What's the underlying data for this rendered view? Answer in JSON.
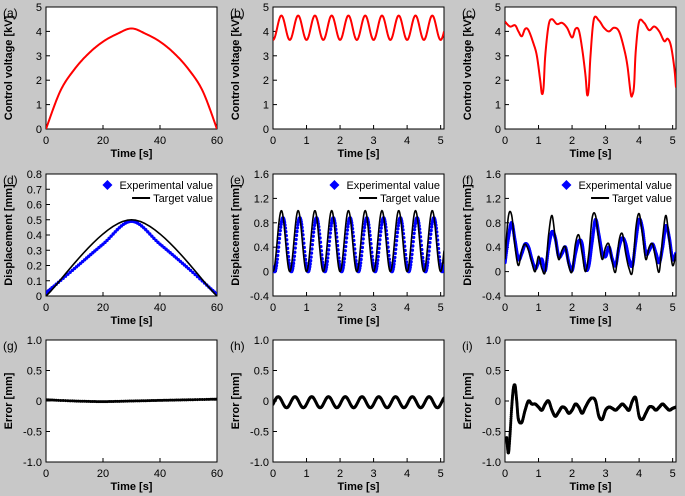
{
  "chart_data": [
    {
      "id": "a",
      "type": "line",
      "panel_label": "(a)",
      "xlabel": "Time [s]",
      "ylabel": "Control voltage [kV]",
      "xlim": [
        0,
        60
      ],
      "ylim": [
        0,
        5
      ],
      "xticks": [
        "0",
        "20",
        "40",
        "60"
      ],
      "yticks": [
        "0",
        "1",
        "2",
        "3",
        "4",
        "5"
      ],
      "series": [
        {
          "style": "red-line",
          "color": "#ff0000",
          "x": [
            0,
            5,
            10,
            15,
            20,
            25,
            30,
            35,
            40,
            45,
            50,
            55,
            60
          ],
          "y": [
            0,
            1.55,
            2.45,
            3.1,
            3.58,
            3.9,
            4.12,
            3.9,
            3.58,
            3.1,
            2.45,
            1.55,
            0
          ]
        }
      ]
    },
    {
      "id": "b",
      "type": "line",
      "panel_label": "(b)",
      "xlabel": "Time [s]",
      "ylabel": "Control voltage [kV]",
      "xlim": [
        0,
        5.1
      ],
      "ylim": [
        0,
        5
      ],
      "xticks": [
        "0",
        "1",
        "2",
        "3",
        "4",
        "5"
      ],
      "yticks": [
        "0",
        "1",
        "2",
        "3",
        "4",
        "5"
      ],
      "series": [
        {
          "style": "red-line",
          "color": "#ff0000",
          "wave": {
            "t_min": 0,
            "t_max": 5.1,
            "base": 4.15,
            "amp": 0.5,
            "freq": 2.0,
            "phase": 0.0
          }
        }
      ]
    },
    {
      "id": "c",
      "type": "line",
      "panel_label": "(c)",
      "xlabel": "Time [s]",
      "ylabel": "Control voltage [kV]",
      "xlim": [
        0,
        5.1
      ],
      "ylim": [
        0,
        5
      ],
      "xticks": [
        "0",
        "1",
        "2",
        "3",
        "4",
        "5"
      ],
      "yticks": [
        "0",
        "1",
        "2",
        "3",
        "4",
        "5"
      ],
      "series": [
        {
          "style": "red-line",
          "color": "#ff0000",
          "x": [
            0,
            0.15,
            0.3,
            0.4,
            0.5,
            0.6,
            0.7,
            0.85,
            0.95,
            1.05,
            1.1,
            1.15,
            1.2,
            1.3,
            1.4,
            1.55,
            1.7,
            1.85,
            2.0,
            2.1,
            2.2,
            2.3,
            2.4,
            2.45,
            2.5,
            2.55,
            2.65,
            2.8,
            2.95,
            3.1,
            3.25,
            3.4,
            3.55,
            3.65,
            3.75,
            3.8,
            3.85,
            3.9,
            4.0,
            4.15,
            4.3,
            4.45,
            4.6,
            4.75,
            4.85,
            4.95,
            5.05,
            5.1
          ],
          "y": [
            4.4,
            4.2,
            4.25,
            4.0,
            3.8,
            4.1,
            4.05,
            3.5,
            3.0,
            2.0,
            1.45,
            1.7,
            3.0,
            4.25,
            4.5,
            4.3,
            4.35,
            4.15,
            3.75,
            4.1,
            4.05,
            3.3,
            2.2,
            1.4,
            1.7,
            3.0,
            4.5,
            4.45,
            4.15,
            4.0,
            4.15,
            4.0,
            3.3,
            2.6,
            1.45,
            1.4,
            1.8,
            3.2,
            4.4,
            4.35,
            4.05,
            4.2,
            4.0,
            3.6,
            3.7,
            3.4,
            2.5,
            1.7
          ]
        }
      ]
    },
    {
      "id": "d",
      "type": "scatter",
      "panel_label": "(d)",
      "xlabel": "Time [s]",
      "ylabel": "Displacement [mm]",
      "xlim": [
        0,
        60
      ],
      "ylim": [
        0,
        0.8
      ],
      "xticks": [
        "0",
        "20",
        "40",
        "60"
      ],
      "yticks": [
        "0",
        "0.1",
        "0.2",
        "0.3",
        "0.4",
        "0.5",
        "0.6",
        "0.7",
        "0.8"
      ],
      "legend": [
        "Experimental value",
        "Target value"
      ],
      "legend_position": "top-right",
      "series": [
        {
          "name": "Experimental value",
          "style": "blue-dots",
          "color": "#0000ff",
          "x": [
            0,
            10,
            20,
            30,
            40,
            50,
            60
          ],
          "y": [
            0.02,
            0.18,
            0.34,
            0.49,
            0.34,
            0.18,
            0.01
          ]
        },
        {
          "name": "Target value",
          "style": "black-line",
          "color": "#000000",
          "x": [
            0,
            30,
            60
          ],
          "y": [
            0,
            0.5,
            0
          ]
        }
      ]
    },
    {
      "id": "e",
      "type": "scatter",
      "panel_label": "(e)",
      "xlabel": "Time [s]",
      "ylabel": "Displacement [mm]",
      "xlim": [
        0,
        5.1
      ],
      "ylim": [
        -0.4,
        1.6
      ],
      "xticks": [
        "0",
        "1",
        "2",
        "3",
        "4",
        "5"
      ],
      "yticks": [
        "-0.4",
        "0",
        "0.4",
        "0.8",
        "1.2",
        "1.6"
      ],
      "legend": [
        "Experimental value",
        "Target value"
      ],
      "legend_position": "top-right",
      "series": [
        {
          "name": "Experimental value",
          "style": "blue-dots",
          "color": "#0000ff",
          "wave": {
            "t_min": 0,
            "t_max": 5.1,
            "base": 0.44,
            "amp": 0.44,
            "freq": 2.0,
            "phase": -0.6
          }
        },
        {
          "name": "Target value",
          "style": "black-line",
          "color": "#000000",
          "wave": {
            "t_min": 0,
            "t_max": 5.1,
            "base": 0.5,
            "amp": 0.5,
            "freq": 2.0,
            "phase": 0.0
          }
        }
      ]
    },
    {
      "id": "f",
      "type": "scatter",
      "panel_label": "(f)",
      "xlabel": "Time [s]",
      "ylabel": "Displacement [mm]",
      "xlim": [
        0,
        5.1
      ],
      "ylim": [
        -0.4,
        1.6
      ],
      "xticks": [
        "0",
        "1",
        "2",
        "3",
        "4",
        "5"
      ],
      "yticks": [
        "-0.4",
        "0",
        "0.4",
        "0.8",
        "1.2",
        "1.6"
      ],
      "legend": [
        "Experimental value",
        "Target value"
      ],
      "legend_position": "top-right",
      "series": [
        {
          "name": "Experimental value",
          "style": "blue-dots",
          "color": "#0000ff",
          "x": [
            0,
            0.1,
            0.2,
            0.3,
            0.4,
            0.5,
            0.6,
            0.7,
            0.8,
            0.9,
            1.0,
            1.1,
            1.2,
            1.3,
            1.4,
            1.5,
            1.6,
            1.7,
            1.8,
            1.9,
            2.0,
            2.1,
            2.2,
            2.3,
            2.4,
            2.5,
            2.6,
            2.7,
            2.8,
            2.9,
            3.0,
            3.1,
            3.2,
            3.3,
            3.4,
            3.5,
            3.6,
            3.7,
            3.8,
            3.9,
            4.0,
            4.1,
            4.2,
            4.3,
            4.4,
            4.5,
            4.6,
            4.7,
            4.8,
            4.9,
            5.0,
            5.1
          ],
          "y": [
            0.15,
            0.55,
            0.8,
            0.5,
            0.2,
            0.3,
            0.45,
            0.4,
            0.2,
            0.05,
            0.15,
            0.2,
            0.02,
            0.4,
            0.65,
            0.55,
            0.25,
            0.3,
            0.4,
            0.15,
            0.02,
            0.3,
            0.5,
            0.45,
            0.05,
            0.1,
            0.5,
            0.85,
            0.6,
            0.3,
            0.25,
            0.4,
            0.2,
            0.1,
            0.4,
            0.55,
            0.45,
            0.2,
            0.1,
            0.5,
            0.85,
            0.7,
            0.3,
            0.35,
            0.45,
            0.3,
            0.15,
            0.4,
            0.75,
            0.55,
            0.2,
            0.3
          ]
        },
        {
          "name": "Target value",
          "style": "black-line",
          "color": "#000000",
          "x": [
            0,
            0.1,
            0.2,
            0.3,
            0.4,
            0.5,
            0.6,
            0.7,
            0.8,
            0.9,
            1.0,
            1.1,
            1.2,
            1.3,
            1.4,
            1.5,
            1.6,
            1.7,
            1.8,
            1.9,
            2.0,
            2.1,
            2.2,
            2.3,
            2.4,
            2.5,
            2.6,
            2.7,
            2.8,
            2.9,
            3.0,
            3.1,
            3.2,
            3.3,
            3.4,
            3.5,
            3.6,
            3.7,
            3.8,
            3.9,
            4.0,
            4.1,
            4.2,
            4.3,
            4.4,
            4.5,
            4.6,
            4.7,
            4.8,
            4.9,
            5.0,
            5.1
          ],
          "y": [
            0.2,
            0.9,
            0.92,
            0.4,
            0.1,
            0.35,
            0.45,
            0.35,
            0.15,
            0.0,
            0.25,
            0.05,
            0.0,
            0.6,
            0.92,
            0.55,
            0.2,
            0.35,
            0.4,
            0.1,
            0.0,
            0.45,
            0.6,
            0.3,
            0.0,
            0.3,
            0.88,
            0.92,
            0.5,
            0.2,
            0.4,
            0.45,
            0.15,
            0.0,
            0.5,
            0.62,
            0.3,
            0.05,
            0.0,
            0.7,
            0.95,
            0.6,
            0.2,
            0.4,
            0.45,
            0.2,
            0.0,
            0.55,
            0.92,
            0.5,
            0.1,
            0.3
          ]
        }
      ]
    },
    {
      "id": "g",
      "type": "scatter",
      "panel_label": "(g)",
      "xlabel": "Time [s]",
      "ylabel": "Error [mm]",
      "xlim": [
        0,
        60
      ],
      "ylim": [
        -1.0,
        1.0
      ],
      "xticks": [
        "0",
        "20",
        "40",
        "60"
      ],
      "yticks": [
        "-1.0",
        "-0.5",
        "0",
        "0.5",
        "1.0"
      ],
      "series": [
        {
          "style": "black-dots",
          "color": "#000000",
          "x": [
            0,
            10,
            20,
            30,
            40,
            50,
            60
          ],
          "y": [
            0.02,
            0.0,
            -0.01,
            0.0,
            0.01,
            0.02,
            0.03
          ]
        }
      ]
    },
    {
      "id": "h",
      "type": "scatter",
      "panel_label": "(h)",
      "xlabel": "Time [s]",
      "ylabel": "Error [mm]",
      "xlim": [
        0,
        5.1
      ],
      "ylim": [
        -1.0,
        1.0
      ],
      "xticks": [
        "0",
        "1",
        "2",
        "3",
        "4",
        "5"
      ],
      "yticks": [
        "-1.0",
        "-0.5",
        "0",
        "0.5",
        "1.0"
      ],
      "series": [
        {
          "style": "black-dots",
          "color": "#000000",
          "wave": {
            "t_min": 0,
            "t_max": 5.1,
            "base": -0.02,
            "amp": 0.09,
            "freq": 2.0,
            "phase": 1.2
          }
        }
      ]
    },
    {
      "id": "i",
      "type": "scatter",
      "panel_label": "(i)",
      "xlabel": "Time [s]",
      "ylabel": "Error [mm]",
      "xlim": [
        0,
        5.1
      ],
      "ylim": [
        -1.0,
        1.0
      ],
      "xticks": [
        "0",
        "1",
        "2",
        "3",
        "4",
        "5"
      ],
      "yticks": [
        "-1.0",
        "-0.5",
        "0",
        "0.5",
        "1.0"
      ],
      "series": [
        {
          "style": "black-dots",
          "color": "#000000",
          "x": [
            0.05,
            0.1,
            0.15,
            0.2,
            0.25,
            0.3,
            0.35,
            0.4,
            0.5,
            0.6,
            0.7,
            0.8,
            0.9,
            1.0,
            1.1,
            1.2,
            1.3,
            1.4,
            1.5,
            1.6,
            1.7,
            1.8,
            1.9,
            2.0,
            2.1,
            2.2,
            2.3,
            2.4,
            2.5,
            2.6,
            2.7,
            2.8,
            2.9,
            3.0,
            3.1,
            3.2,
            3.3,
            3.4,
            3.5,
            3.6,
            3.7,
            3.8,
            3.9,
            4.0,
            4.1,
            4.2,
            4.3,
            4.4,
            4.5,
            4.6,
            4.7,
            4.8,
            4.9,
            5.0,
            5.1
          ],
          "y": [
            -0.6,
            -0.85,
            -0.55,
            -0.1,
            0.2,
            0.25,
            0.0,
            -0.3,
            -0.35,
            -0.15,
            0.0,
            -0.05,
            -0.05,
            -0.1,
            -0.15,
            -0.05,
            0.0,
            -0.15,
            -0.25,
            -0.18,
            -0.1,
            -0.12,
            -0.2,
            -0.15,
            -0.05,
            -0.1,
            -0.2,
            -0.1,
            0.0,
            0.05,
            0.0,
            -0.25,
            -0.3,
            -0.15,
            -0.1,
            -0.12,
            -0.15,
            -0.1,
            -0.05,
            -0.1,
            -0.15,
            0.0,
            0.05,
            -0.25,
            -0.3,
            -0.2,
            -0.1,
            -0.1,
            -0.15,
            -0.1,
            -0.05,
            -0.1,
            -0.15,
            -0.12,
            -0.1
          ]
        }
      ]
    }
  ]
}
